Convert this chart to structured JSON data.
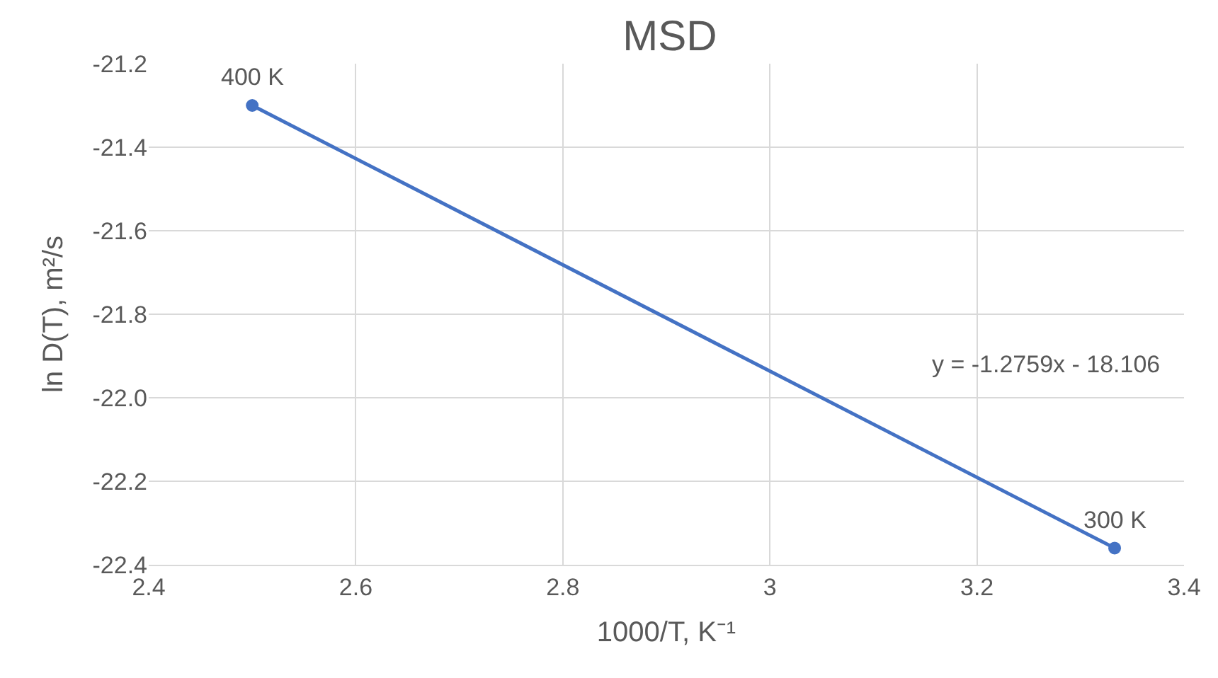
{
  "chart_data": {
    "type": "line",
    "title": "MSD",
    "xlabel": "1000/T, K⁻¹",
    "ylabel": "ln D(T), m²/s",
    "x": [
      2.5,
      3.333
    ],
    "series": [
      {
        "color": "#4472c4",
        "values": [
          -21.3,
          -22.36
        ]
      }
    ],
    "xlim": [
      2.4,
      3.4
    ],
    "xticks": [
      2.4,
      2.6,
      2.8,
      3,
      3.2,
      3.4
    ],
    "ylim": [
      -22.4,
      -21.2
    ],
    "yticks": [
      -22.4,
      -22.2,
      {
        "value": -22.0,
        "label": "-22.0"
      },
      -21.8,
      -21.6,
      -21.4,
      -21.2
    ],
    "grid": true,
    "legend": false,
    "marker": "circle",
    "line_style": "solid",
    "annotations": [
      {
        "text": "400 K",
        "x": 2.5,
        "y": -21.3
      },
      {
        "text": "300 K",
        "x": 3.333,
        "y": -22.36
      },
      "y = -1.2759x - 18.106"
    ]
  }
}
